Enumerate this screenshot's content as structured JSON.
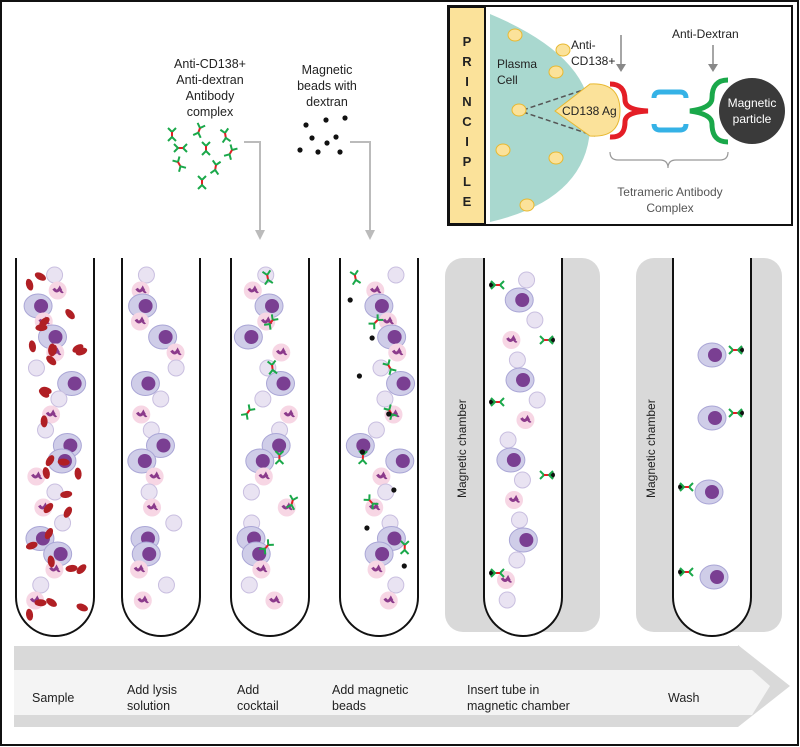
{
  "reagents": {
    "antibody_complex": [
      "Anti-CD138+",
      "Anti-dextran",
      "Antibody",
      "complex"
    ],
    "magnetic_beads": [
      "Magnetic",
      "beads with",
      "dextran"
    ]
  },
  "principle": {
    "title_letters": [
      "P",
      "R",
      "I",
      "N",
      "C",
      "I",
      "P",
      "L",
      "E"
    ],
    "plasma_cell": [
      "Plasma",
      "Cell"
    ],
    "anti_cd138": [
      "Anti-",
      "CD138+"
    ],
    "anti_dextran": "Anti-Dextran",
    "antigen": "CD138 Ag",
    "magnetic_particle": [
      "Magnetic",
      "particle"
    ],
    "complex": [
      "Tetrameric Antibody",
      "Complex"
    ]
  },
  "chambers": [
    "Magnetic chamber",
    "Magnetic chamber"
  ],
  "steps": [
    {
      "lines": [
        "Sample"
      ]
    },
    {
      "lines": [
        "Add lysis",
        "solution"
      ]
    },
    {
      "lines": [
        "Add",
        "cocktail"
      ]
    },
    {
      "lines": [
        "Add  magnetic",
        "beads"
      ]
    },
    {
      "lines": [
        "Insert tube in",
        "magnetic chamber"
      ]
    },
    {
      "lines": [
        "Wash"
      ]
    }
  ],
  "colors": {
    "yellow": "#fbe29a",
    "teal": "#a9d8cf",
    "red": "#e41e26",
    "green": "#1aa84a",
    "blue": "#35b2e6",
    "rbc": "#b01f24",
    "particle": "#3a3a3a"
  }
}
